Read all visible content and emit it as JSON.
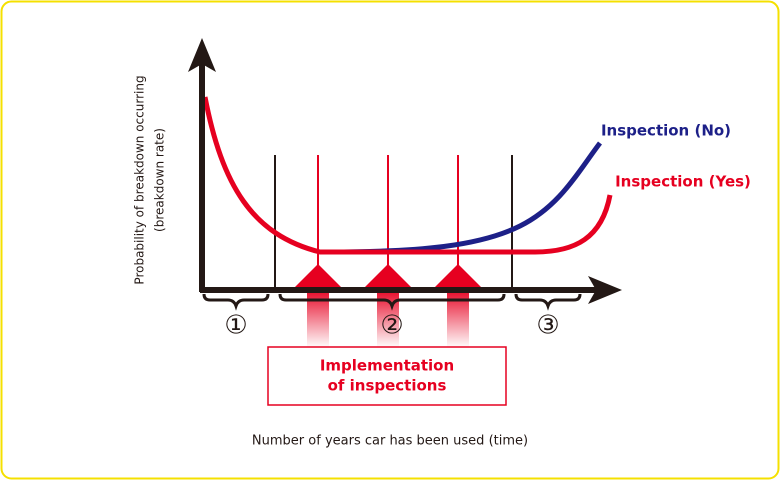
{
  "y_axis_label": {
    "line1": "Probability of breakdown occurring",
    "line2": "(breakdown rate)"
  },
  "x_axis_label": "Number of years car has been used (time)",
  "curves": [
    {
      "label": "Inspection (No)"
    },
    {
      "label": "Inspection (Yes)"
    }
  ],
  "phases": [
    "①",
    "②",
    "③"
  ],
  "box": {
    "line1": "Implementation",
    "line2": "of inspections"
  }
}
